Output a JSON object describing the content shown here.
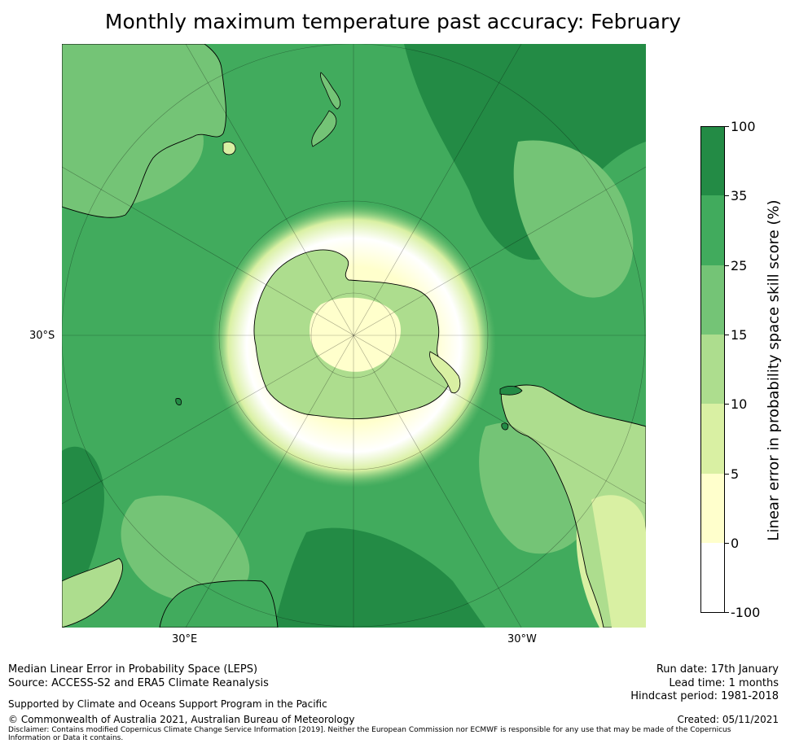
{
  "title": "Monthly maximum temperature past accuracy: February",
  "map": {
    "projection": "South polar stereographic",
    "lat_label": "30°S",
    "lon_labels": [
      "30°E",
      "30°W"
    ]
  },
  "colorbar": {
    "title": "Linear error in probability space skill score (%)",
    "ticks": [
      "100",
      "35",
      "25",
      "15",
      "10",
      "5",
      "0",
      "-100"
    ],
    "bins": [
      {
        "range": "35 to 100",
        "color": "#238b45"
      },
      {
        "range": "25 to 35",
        "color": "#41ab5d"
      },
      {
        "range": "15 to 25",
        "color": "#74c476"
      },
      {
        "range": "10 to 15",
        "color": "#addd8e"
      },
      {
        "range": "5 to 10",
        "color": "#d9f0a3"
      },
      {
        "range": "0 to 5",
        "color": "#ffffcc"
      },
      {
        "range": "-100 to 0",
        "color": "#ffffff"
      }
    ]
  },
  "footer": {
    "method": "Median Linear Error in Probability Space (LEPS)",
    "source": "Source: ACCESS-S2 and ERA5 Climate Reanalysis",
    "support": "Supported by Climate and Oceans Support Program in the Pacific",
    "copyright": "© Commonwealth of Australia 2021, Australian Bureau of Meteorology",
    "disclaimer": "Disclaimer: Contains modified Copernicus Climate Change Service Information [2019]. Neither the European Commission nor ECMWF is responsible for any use that may be made of the Copernicus Information or Data it contains.",
    "run_date": "Run date: 17th January",
    "lead_time": "Lead time: 1 months",
    "hindcast": "Hindcast period: 1981-2018",
    "created": "Created: 05/11/2021"
  }
}
